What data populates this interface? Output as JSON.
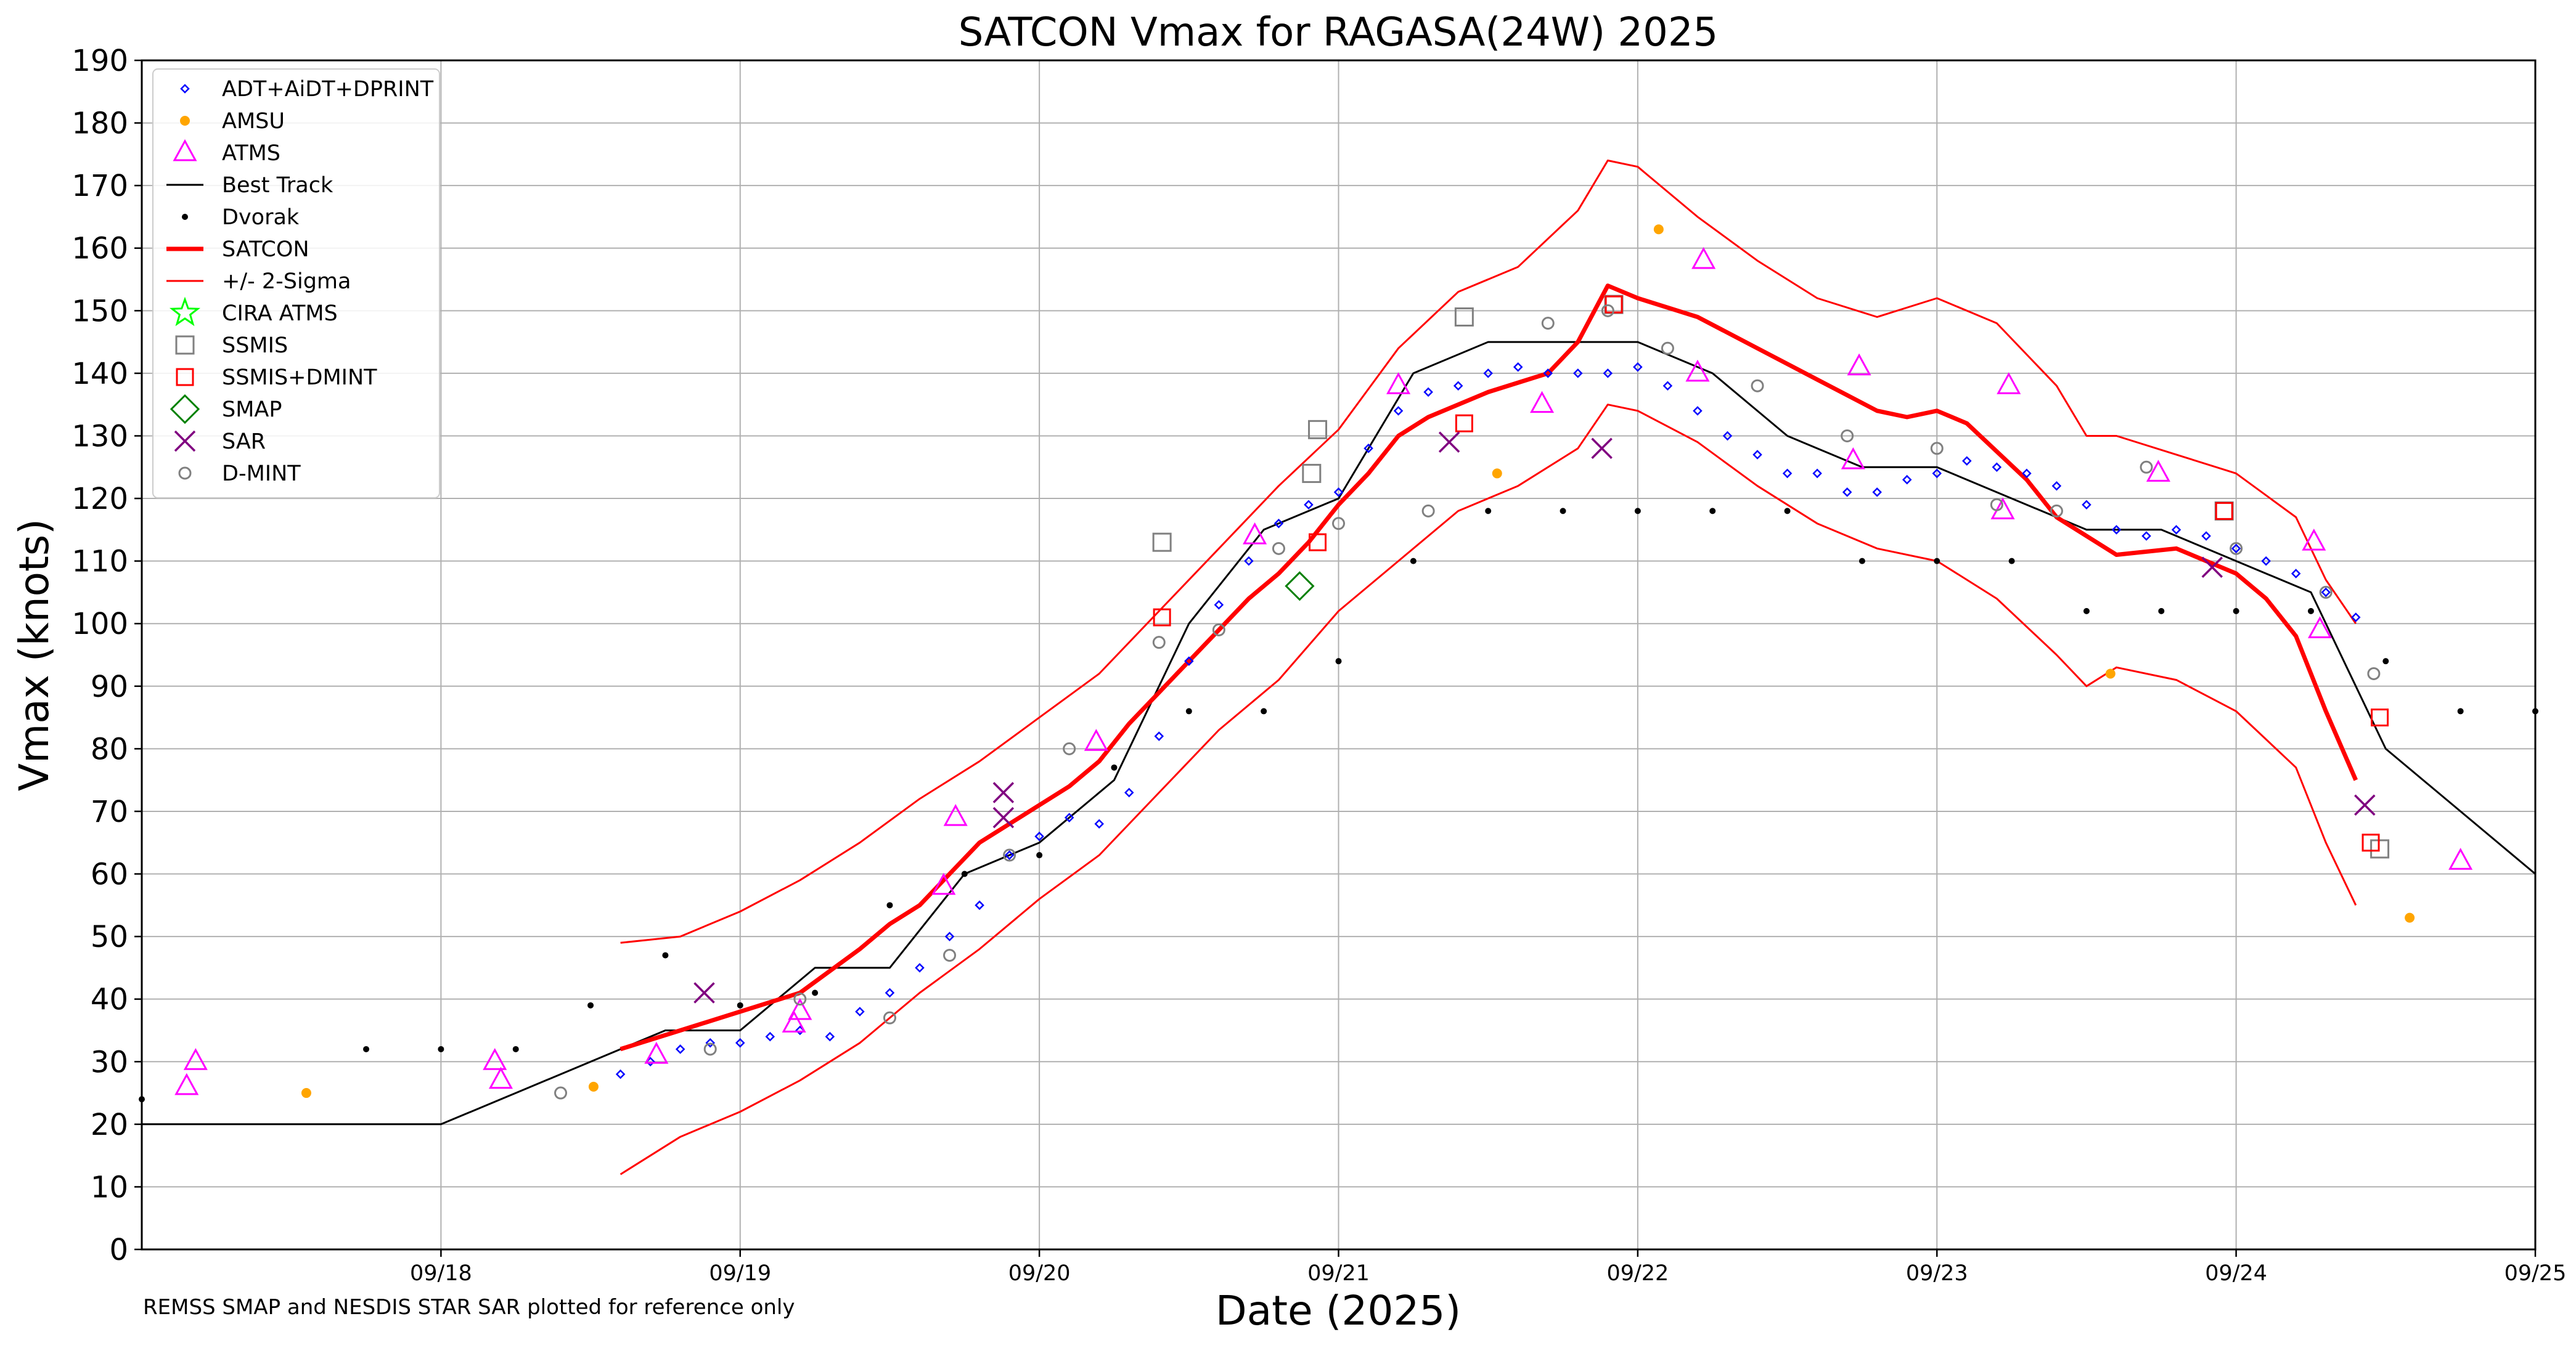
{
  "chart_data": {
    "type": "scatter",
    "title": "SATCON Vmax for RAGASA(24W) 2025",
    "xlabel": "Date (2025)",
    "ylabel": "Vmax (knots)",
    "ylim": [
      0,
      190
    ],
    "yticks": [
      0,
      10,
      20,
      30,
      40,
      50,
      60,
      70,
      80,
      90,
      100,
      110,
      120,
      130,
      140,
      150,
      160,
      170,
      180,
      190
    ],
    "xlim_days": [
      17.0,
      25.0
    ],
    "xticks": [
      {
        "day": 18,
        "label": "09/18"
      },
      {
        "day": 19,
        "label": "09/19"
      },
      {
        "day": 20,
        "label": "09/20"
      },
      {
        "day": 21,
        "label": "09/21"
      },
      {
        "day": 22,
        "label": "09/22"
      },
      {
        "day": 23,
        "label": "09/23"
      },
      {
        "day": 24,
        "label": "09/24"
      },
      {
        "day": 25,
        "label": "09/25"
      }
    ],
    "grid": true,
    "legend_position": "top-left",
    "footnote": "REMSS SMAP and NESDIS STAR SAR plotted for reference only",
    "legend": [
      {
        "key": "adt",
        "label": "ADT+AiDT+DPRINT"
      },
      {
        "key": "amsu",
        "label": "AMSU"
      },
      {
        "key": "atms",
        "label": "ATMS"
      },
      {
        "key": "best",
        "label": "Best Track"
      },
      {
        "key": "dvorak",
        "label": "Dvorak"
      },
      {
        "key": "satcon",
        "label": "SATCON"
      },
      {
        "key": "sigma",
        "label": "+/- 2-Sigma"
      },
      {
        "key": "cira",
        "label": "CIRA ATMS"
      },
      {
        "key": "ssmis",
        "label": "SSMIS"
      },
      {
        "key": "ssmisdmint",
        "label": "SSMIS+DMINT"
      },
      {
        "key": "smap",
        "label": "SMAP"
      },
      {
        "key": "sar",
        "label": "SAR"
      },
      {
        "key": "dmint",
        "label": "D-MINT"
      }
    ],
    "colors": {
      "adt": "#0000ff",
      "amsu": "#ffa500",
      "atms": "#ff00ff",
      "best": "#000000",
      "dvorak": "#000000",
      "satcon": "#ff0000",
      "sigma": "#ff0000",
      "cira": "#00ff00",
      "ssmis": "#808080",
      "ssmisdmint": "#ff0000",
      "smap": "#008000",
      "sar": "#800080",
      "dmint": "#808080",
      "grid": "#b0b0b0"
    },
    "series": [
      {
        "name": "Best Track",
        "key": "best",
        "x": [
          17.0,
          18.0,
          18.25,
          18.75,
          19.0,
          19.25,
          19.5,
          19.75,
          20.0,
          20.25,
          20.5,
          20.75,
          21.0,
          21.25,
          21.5,
          21.75,
          22.0,
          22.25,
          22.5,
          22.75,
          23.0,
          23.25,
          23.5,
          23.75,
          24.0,
          24.25,
          24.5,
          25.0
        ],
        "y": [
          20,
          20,
          25,
          35,
          35,
          45,
          45,
          60,
          65,
          75,
          100,
          115,
          120,
          140,
          145,
          145,
          145,
          140,
          130,
          125,
          125,
          120,
          115,
          115,
          110,
          105,
          80,
          60
        ]
      },
      {
        "name": "SATCON",
        "key": "satcon",
        "x": [
          18.6,
          18.8,
          19.0,
          19.2,
          19.4,
          19.5,
          19.6,
          19.7,
          19.8,
          20.0,
          20.1,
          20.2,
          20.3,
          20.4,
          20.5,
          20.6,
          20.7,
          20.8,
          20.9,
          21.0,
          21.1,
          21.2,
          21.3,
          21.5,
          21.7,
          21.8,
          21.9,
          22.0,
          22.2,
          22.4,
          22.6,
          22.8,
          22.9,
          23.0,
          23.1,
          23.3,
          23.4,
          23.6,
          23.8,
          24.0,
          24.1,
          24.2,
          24.3,
          24.4
        ],
        "y": [
          32,
          35,
          38,
          41,
          48,
          52,
          55,
          60,
          65,
          71,
          74,
          78,
          84,
          89,
          94,
          99,
          104,
          108,
          113,
          119,
          124,
          130,
          133,
          137,
          140,
          145,
          154,
          152,
          149,
          144,
          139,
          134,
          133,
          134,
          132,
          123,
          117,
          111,
          112,
          108,
          104,
          98,
          86,
          75
        ]
      },
      {
        "name": "+2-Sigma",
        "key": "sigma",
        "x": [
          18.6,
          18.8,
          19.0,
          19.2,
          19.4,
          19.6,
          19.8,
          20.0,
          20.2,
          20.4,
          20.6,
          20.8,
          21.0,
          21.2,
          21.4,
          21.6,
          21.8,
          21.9,
          22.0,
          22.2,
          22.4,
          22.6,
          22.8,
          23.0,
          23.2,
          23.4,
          23.5,
          23.6,
          23.8,
          24.0,
          24.2,
          24.3,
          24.4
        ],
        "y": [
          49,
          50,
          54,
          59,
          65,
          72,
          78,
          85,
          92,
          102,
          112,
          122,
          131,
          144,
          153,
          157,
          166,
          174,
          173,
          165,
          158,
          152,
          149,
          152,
          148,
          138,
          130,
          130,
          127,
          124,
          117,
          107,
          100
        ]
      },
      {
        "name": "-2-Sigma",
        "key": "sigma",
        "x": [
          18.6,
          18.8,
          19.0,
          19.2,
          19.4,
          19.6,
          19.8,
          20.0,
          20.2,
          20.4,
          20.6,
          20.8,
          21.0,
          21.2,
          21.4,
          21.6,
          21.8,
          21.9,
          22.0,
          22.2,
          22.4,
          22.6,
          22.8,
          23.0,
          23.2,
          23.4,
          23.5,
          23.6,
          23.8,
          24.0,
          24.2,
          24.3,
          24.4
        ],
        "y": [
          12,
          18,
          22,
          27,
          33,
          41,
          48,
          56,
          63,
          73,
          83,
          91,
          102,
          110,
          118,
          122,
          128,
          135,
          134,
          129,
          122,
          116,
          112,
          110,
          104,
          95,
          90,
          93,
          91,
          86,
          77,
          65,
          55
        ]
      },
      {
        "name": "ADT+AiDT+DPRINT",
        "key": "adt",
        "x": [
          18.6,
          18.7,
          18.8,
          18.9,
          19.0,
          19.1,
          19.2,
          19.3,
          19.4,
          19.5,
          19.6,
          19.7,
          19.8,
          19.9,
          20.0,
          20.1,
          20.2,
          20.3,
          20.4,
          20.5,
          20.6,
          20.7,
          20.8,
          20.9,
          21.0,
          21.1,
          21.2,
          21.3,
          21.4,
          21.5,
          21.6,
          21.7,
          21.8,
          21.9,
          22.0,
          22.1,
          22.2,
          22.3,
          22.4,
          22.5,
          22.6,
          22.7,
          22.8,
          22.9,
          23.0,
          23.1,
          23.2,
          23.3,
          23.4,
          23.5,
          23.6,
          23.7,
          23.8,
          23.9,
          24.0,
          24.1,
          24.2,
          24.3,
          24.4
        ],
        "y": [
          28,
          30,
          32,
          33,
          33,
          34,
          35,
          34,
          38,
          41,
          45,
          50,
          55,
          63,
          66,
          69,
          68,
          73,
          82,
          94,
          103,
          110,
          116,
          119,
          121,
          128,
          134,
          137,
          138,
          140,
          141,
          140,
          140,
          140,
          141,
          138,
          134,
          130,
          127,
          124,
          124,
          121,
          121,
          123,
          124,
          126,
          125,
          124,
          122,
          119,
          115,
          114,
          115,
          114,
          112,
          110,
          108,
          105,
          101
        ]
      },
      {
        "name": "Dvorak",
        "key": "dvorak",
        "x": [
          17.0,
          17.75,
          18.0,
          18.25,
          18.5,
          18.75,
          19.0,
          19.25,
          19.5,
          19.75,
          20.0,
          20.25,
          20.5,
          20.75,
          21.0,
          21.25,
          21.5,
          21.75,
          22.0,
          22.25,
          22.5,
          22.75,
          23.0,
          23.25,
          23.5,
          23.75,
          24.0,
          24.25,
          24.5,
          24.75,
          25.0
        ],
        "y": [
          24,
          32,
          32,
          32,
          39,
          47,
          39,
          41,
          55,
          60,
          63,
          77,
          86,
          86,
          94,
          110,
          118,
          118,
          118,
          118,
          118,
          110,
          110,
          110,
          102,
          102,
          102,
          102,
          94,
          86,
          86
        ]
      },
      {
        "name": "AMSU",
        "key": "amsu",
        "x": [
          17.55,
          18.51,
          21.53,
          22.07,
          23.58,
          24.58
        ],
        "y": [
          25,
          26,
          124,
          163,
          92,
          53
        ]
      },
      {
        "name": "ATMS",
        "key": "atms",
        "x": [
          17.15,
          17.18,
          18.18,
          18.2,
          18.72,
          19.18,
          19.2,
          19.68,
          19.72,
          20.19,
          20.72,
          21.2,
          21.68,
          22.2,
          22.22,
          22.72,
          22.74,
          23.22,
          23.24,
          23.74,
          24.26,
          24.28,
          24.75
        ],
        "y": [
          26,
          30,
          30,
          27,
          31,
          36,
          38,
          58,
          69,
          81,
          114,
          138,
          135,
          140,
          158,
          126,
          141,
          118,
          138,
          124,
          113,
          99,
          62
        ]
      },
      {
        "name": "CIRA ATMS",
        "key": "cira",
        "x": [],
        "y": []
      },
      {
        "name": "SSMIS",
        "key": "ssmis",
        "x": [
          20.41,
          20.93,
          21.42,
          21.92,
          23.96,
          24.48
        ],
        "y": [
          113,
          131,
          149,
          151,
          118,
          64
        ],
        "extra_x": [
          20.91
        ],
        "extra_y": [
          124
        ]
      },
      {
        "name": "SSMIS+DMINT",
        "key": "ssmisdmint",
        "x": [
          20.41,
          20.93,
          21.42,
          21.92,
          23.96,
          24.45,
          24.48
        ],
        "y": [
          101,
          113,
          132,
          151,
          118,
          65,
          85
        ]
      },
      {
        "name": "SMAP",
        "key": "smap",
        "x": [
          20.87
        ],
        "y": [
          106
        ]
      },
      {
        "name": "SAR",
        "key": "sar",
        "x": [
          18.88,
          19.88,
          19.88,
          21.37,
          21.88,
          23.92,
          24.43
        ],
        "y": [
          41,
          73,
          69,
          129,
          128,
          109,
          71
        ]
      },
      {
        "name": "D-MINT",
        "key": "dmint",
        "x": [
          18.4,
          18.9,
          19.2,
          19.5,
          19.7,
          19.9,
          20.1,
          20.4,
          20.6,
          20.8,
          21.0,
          21.3,
          21.7,
          21.9,
          22.1,
          22.4,
          22.7,
          23.0,
          23.2,
          23.4,
          23.7,
          24.0,
          24.3,
          24.46
        ],
        "y": [
          25,
          32,
          40,
          37,
          47,
          63,
          80,
          97,
          99,
          112,
          116,
          118,
          148,
          150,
          144,
          138,
          130,
          128,
          119,
          118,
          125,
          112,
          105,
          92
        ]
      }
    ]
  }
}
